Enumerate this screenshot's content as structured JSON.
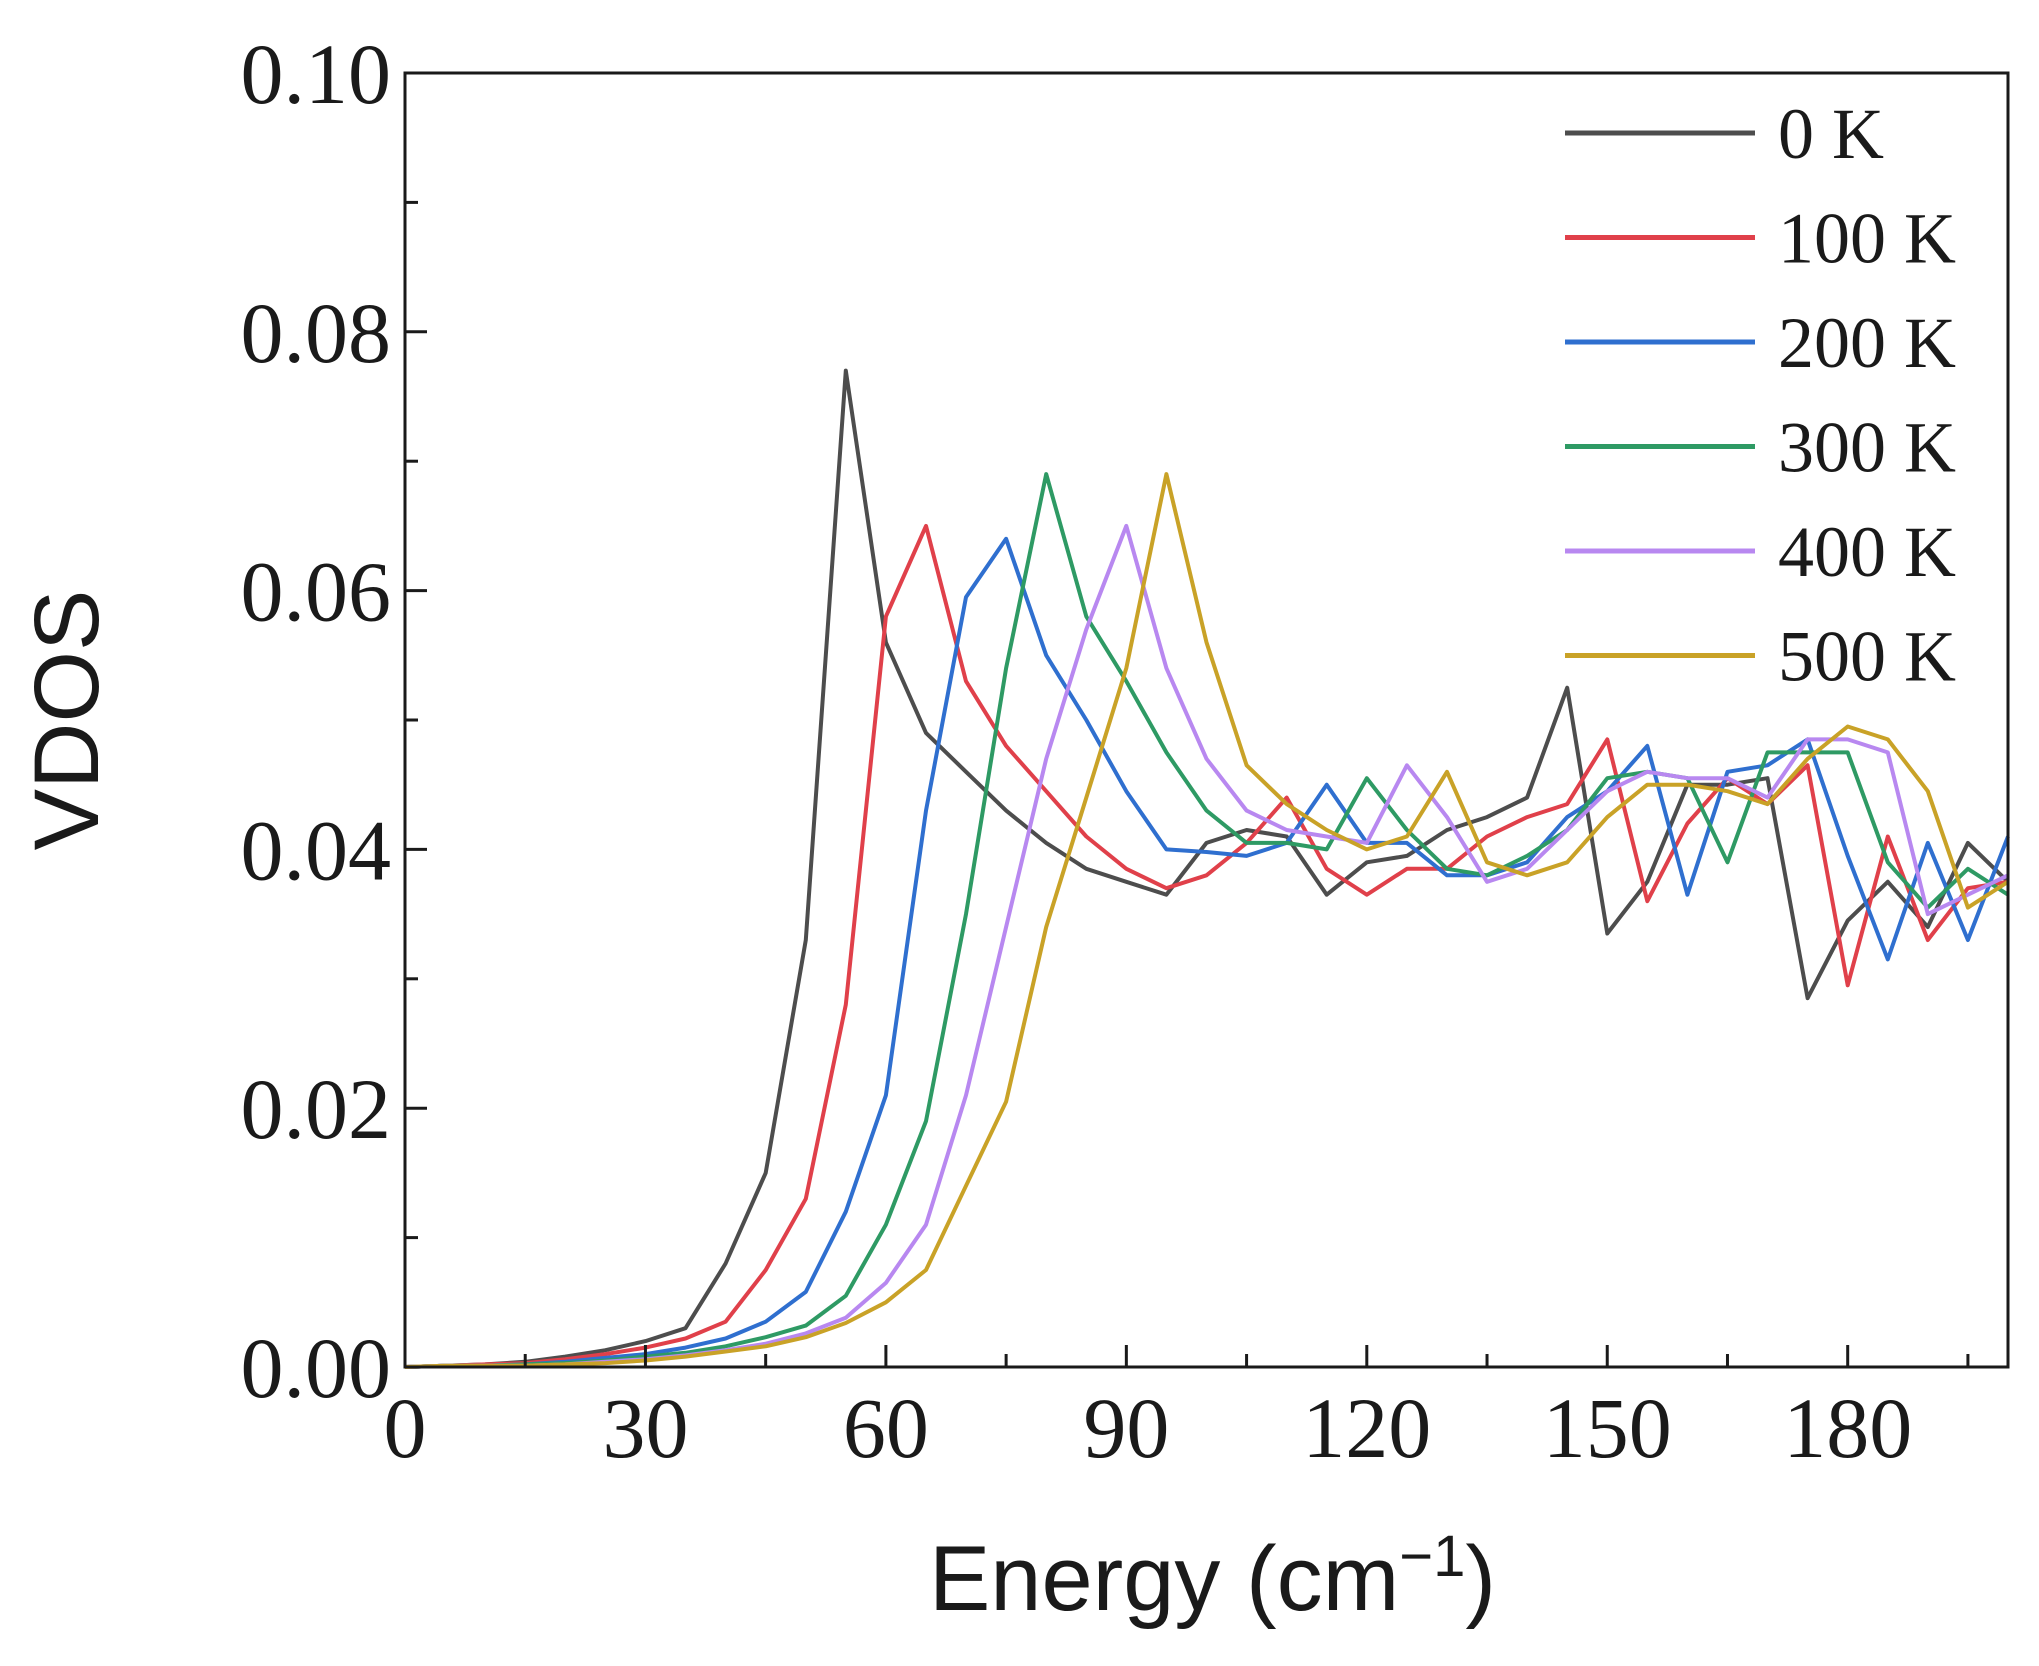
{
  "chart_data": {
    "type": "line",
    "xlabel": "Energy (cm",
    "xlabel_sup": "−1",
    "xlabel_close": ")",
    "ylabel": "VDOS",
    "xlim": [
      0,
      200
    ],
    "ylim": [
      0,
      0.1
    ],
    "xticks": [
      0,
      30,
      60,
      90,
      120,
      150,
      180
    ],
    "xtick_labels": [
      "0",
      "30",
      "60",
      "90",
      "120",
      "150",
      "180"
    ],
    "yticks": [
      0,
      0.02,
      0.04,
      0.06,
      0.08,
      0.1
    ],
    "ytick_labels": [
      "0.00",
      "0.02",
      "0.04",
      "0.06",
      "0.08",
      "0.10"
    ],
    "legend_position": "top-right",
    "x": [
      0,
      5,
      10,
      15,
      20,
      25,
      30,
      35,
      40,
      45,
      50,
      55,
      60,
      65,
      70,
      75,
      80,
      85,
      90,
      95,
      100,
      105,
      110,
      115,
      120,
      125,
      130,
      135,
      140,
      145,
      150,
      155,
      160,
      165,
      170,
      175,
      180,
      185,
      190,
      195,
      200
    ],
    "series": [
      {
        "name": "0 K",
        "color": "#4d4d4d",
        "values": [
          0.0,
          0.0001,
          0.0002,
          0.0004,
          0.0008,
          0.0013,
          0.002,
          0.003,
          0.008,
          0.015,
          0.033,
          0.077,
          0.056,
          0.049,
          0.046,
          0.043,
          0.0405,
          0.0385,
          0.0375,
          0.0365,
          0.0405,
          0.0415,
          0.041,
          0.0365,
          0.039,
          0.0395,
          0.0415,
          0.0425,
          0.044,
          0.0525,
          0.0335,
          0.0375,
          0.045,
          0.045,
          0.0455,
          0.0285,
          0.0345,
          0.0375,
          0.034,
          0.0405,
          0.0375
        ]
      },
      {
        "name": "100 K",
        "color": "#e0404a",
        "values": [
          0.0,
          0.0001,
          0.0002,
          0.0003,
          0.0006,
          0.001,
          0.0015,
          0.0022,
          0.0035,
          0.0075,
          0.013,
          0.028,
          0.058,
          0.065,
          0.053,
          0.048,
          0.0445,
          0.041,
          0.0385,
          0.037,
          0.038,
          0.0405,
          0.044,
          0.0385,
          0.0365,
          0.0385,
          0.0385,
          0.041,
          0.0425,
          0.0435,
          0.0485,
          0.036,
          0.042,
          0.0455,
          0.0435,
          0.0465,
          0.0295,
          0.041,
          0.033,
          0.037,
          0.0375
        ]
      },
      {
        "name": "200 K",
        "color": "#2f6fcf",
        "values": [
          0.0,
          0.0001,
          0.0001,
          0.0002,
          0.0004,
          0.0007,
          0.001,
          0.0015,
          0.0022,
          0.0035,
          0.0058,
          0.012,
          0.021,
          0.043,
          0.0595,
          0.064,
          0.055,
          0.05,
          0.0445,
          0.04,
          0.0398,
          0.0395,
          0.0405,
          0.045,
          0.0405,
          0.0405,
          0.038,
          0.038,
          0.039,
          0.0425,
          0.0445,
          0.048,
          0.0365,
          0.046,
          0.0465,
          0.0485,
          0.0395,
          0.0315,
          0.0405,
          0.033,
          0.041
        ]
      },
      {
        "name": "300 K",
        "color": "#2e9a64",
        "values": [
          0.0,
          0.0001,
          0.0001,
          0.0002,
          0.0003,
          0.0005,
          0.0008,
          0.0011,
          0.0016,
          0.0023,
          0.0032,
          0.0055,
          0.011,
          0.019,
          0.035,
          0.054,
          0.069,
          0.058,
          0.053,
          0.0475,
          0.043,
          0.0405,
          0.0405,
          0.04,
          0.0455,
          0.0415,
          0.0385,
          0.038,
          0.0395,
          0.0415,
          0.0455,
          0.046,
          0.0455,
          0.039,
          0.0475,
          0.0475,
          0.0475,
          0.039,
          0.0355,
          0.0385,
          0.0365
        ]
      },
      {
        "name": "400 K",
        "color": "#b888f0",
        "values": [
          0.0,
          0.0001,
          0.0001,
          0.0001,
          0.0002,
          0.0004,
          0.0006,
          0.0009,
          0.0013,
          0.0018,
          0.0026,
          0.0038,
          0.0065,
          0.011,
          0.021,
          0.034,
          0.047,
          0.057,
          0.065,
          0.054,
          0.047,
          0.043,
          0.0415,
          0.041,
          0.0405,
          0.0465,
          0.0425,
          0.0375,
          0.0385,
          0.0415,
          0.0445,
          0.046,
          0.0455,
          0.0455,
          0.044,
          0.0485,
          0.0485,
          0.0475,
          0.035,
          0.0365,
          0.038
        ]
      },
      {
        "name": "500 K",
        "color": "#c9a227",
        "values": [
          0.0,
          0.0001,
          0.0001,
          0.0001,
          0.0002,
          0.0003,
          0.0005,
          0.0008,
          0.0012,
          0.0016,
          0.0023,
          0.0034,
          0.005,
          0.0075,
          0.014,
          0.0205,
          0.034,
          0.044,
          0.054,
          0.069,
          0.056,
          0.0465,
          0.0435,
          0.0415,
          0.04,
          0.041,
          0.046,
          0.039,
          0.038,
          0.039,
          0.0425,
          0.045,
          0.045,
          0.0445,
          0.0435,
          0.047,
          0.0495,
          0.0485,
          0.0445,
          0.0355,
          0.0375
        ]
      }
    ]
  }
}
